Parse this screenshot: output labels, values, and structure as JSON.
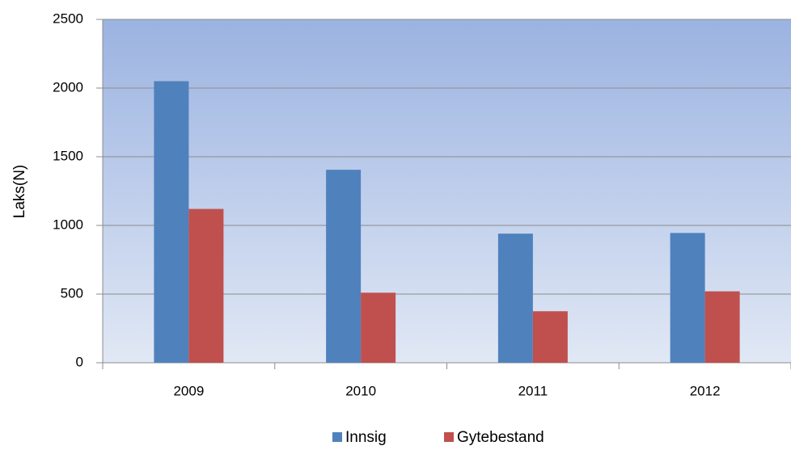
{
  "chart_data": {
    "type": "bar",
    "y_label": "Laks(N)",
    "categories": [
      "2009",
      "2010",
      "2011",
      "2012"
    ],
    "series": [
      {
        "name": "Innsig",
        "color": "#4f81bd",
        "values": [
          2050,
          1405,
          940,
          945
        ]
      },
      {
        "name": "Gytebestand",
        "color": "#c0504d",
        "values": [
          1120,
          510,
          375,
          520
        ]
      }
    ],
    "ylim": [
      0,
      2500
    ],
    "yticks": [
      0,
      500,
      1000,
      1500,
      2000,
      2500
    ],
    "grid": true,
    "legend": "bottom"
  }
}
